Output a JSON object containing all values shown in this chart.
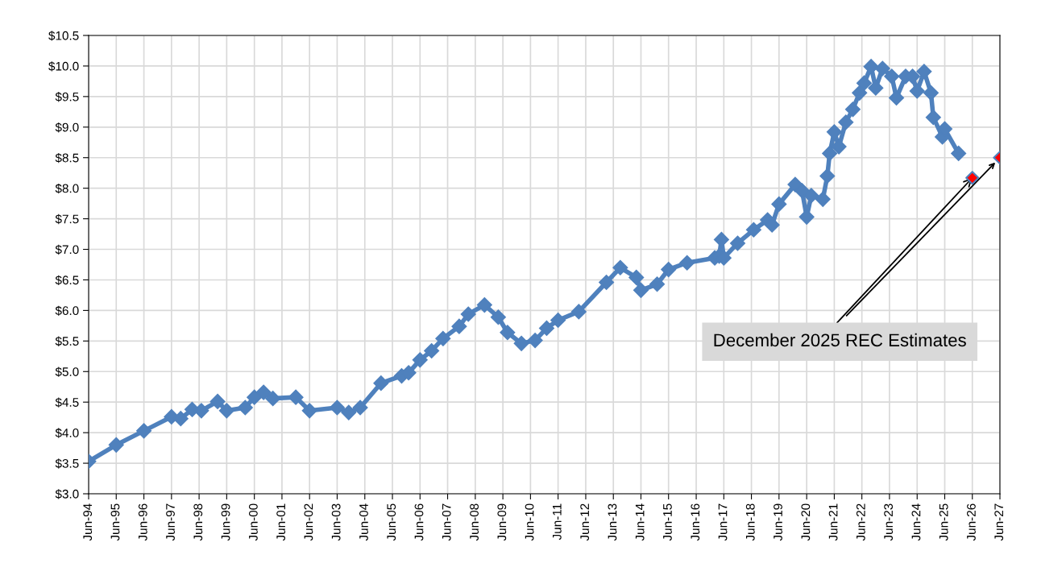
{
  "chart_data": {
    "type": "line",
    "marker": "diamond",
    "line_style": "solid",
    "grid": true,
    "xlim": [
      "1994-06",
      "2027-06"
    ],
    "ylim": [
      3.0,
      10.5
    ],
    "yticks": [
      {
        "value": 3.0,
        "label": "$3.0"
      },
      {
        "value": 3.5,
        "label": "$3.5"
      },
      {
        "value": 4.0,
        "label": "$4.0"
      },
      {
        "value": 4.5,
        "label": "$4.5"
      },
      {
        "value": 5.0,
        "label": "$5.0"
      },
      {
        "value": 5.5,
        "label": "$5.5"
      },
      {
        "value": 6.0,
        "label": "$6.0"
      },
      {
        "value": 6.5,
        "label": "$6.5"
      },
      {
        "value": 7.0,
        "label": "$7.0"
      },
      {
        "value": 7.5,
        "label": "$7.5"
      },
      {
        "value": 8.0,
        "label": "$8.0"
      },
      {
        "value": 8.5,
        "label": "$8.5"
      },
      {
        "value": 9.0,
        "label": "$9.0"
      },
      {
        "value": 9.5,
        "label": "$9.5"
      },
      {
        "value": 10.0,
        "label": "$10.0"
      },
      {
        "value": 10.5,
        "label": "$10.5"
      }
    ],
    "xticks": [
      {
        "value": "1994-06",
        "label": "Jun-94"
      },
      {
        "value": "1995-06",
        "label": "Jun-95"
      },
      {
        "value": "1996-06",
        "label": "Jun-96"
      },
      {
        "value": "1997-06",
        "label": "Jun-97"
      },
      {
        "value": "1998-06",
        "label": "Jun-98"
      },
      {
        "value": "1999-06",
        "label": "Jun-99"
      },
      {
        "value": "2000-06",
        "label": "Jun-00"
      },
      {
        "value": "2001-06",
        "label": "Jun-01"
      },
      {
        "value": "2002-06",
        "label": "Jun-02"
      },
      {
        "value": "2003-06",
        "label": "Jun-03"
      },
      {
        "value": "2004-06",
        "label": "Jun-04"
      },
      {
        "value": "2005-06",
        "label": "Jun-05"
      },
      {
        "value": "2006-06",
        "label": "Jun-06"
      },
      {
        "value": "2007-06",
        "label": "Jun-07"
      },
      {
        "value": "2008-06",
        "label": "Jun-08"
      },
      {
        "value": "2009-06",
        "label": "Jun-09"
      },
      {
        "value": "2010-06",
        "label": "Jun-10"
      },
      {
        "value": "2011-06",
        "label": "Jun-11"
      },
      {
        "value": "2012-06",
        "label": "Jun-12"
      },
      {
        "value": "2013-06",
        "label": "Jun-13"
      },
      {
        "value": "2014-06",
        "label": "Jun-14"
      },
      {
        "value": "2015-06",
        "label": "Jun-15"
      },
      {
        "value": "2016-06",
        "label": "Jun-16"
      },
      {
        "value": "2017-06",
        "label": "Jun-17"
      },
      {
        "value": "2018-06",
        "label": "Jun-18"
      },
      {
        "value": "2019-06",
        "label": "Jun-19"
      },
      {
        "value": "2020-06",
        "label": "Jun-20"
      },
      {
        "value": "2021-06",
        "label": "Jun-21"
      },
      {
        "value": "2022-06",
        "label": "Jun-22"
      },
      {
        "value": "2023-06",
        "label": "Jun-23"
      },
      {
        "value": "2024-06",
        "label": "Jun-24"
      },
      {
        "value": "2025-06",
        "label": "Jun-25"
      },
      {
        "value": "2026-06",
        "label": "Jun-26"
      },
      {
        "value": "2027-06",
        "label": "Jun-27"
      }
    ],
    "annotations": [
      {
        "text": "December 2025 REC Estimates",
        "x": "2026-06",
        "y": 8.17
      }
    ],
    "series": [
      {
        "color": "#4f81bd",
        "x": [
          "1994-06",
          "1995-06",
          "1996-06",
          "1997-06",
          "1997-10",
          "1998-03",
          "1998-07",
          "1999-02",
          "1999-06",
          "2000-02",
          "2000-06",
          "2000-10",
          "2001-02",
          "2001-12",
          "2002-06",
          "2003-06",
          "2003-11",
          "2004-04",
          "2005-01",
          "2005-10",
          "2006-01",
          "2006-06",
          "2006-11",
          "2007-04",
          "2007-11",
          "2008-03",
          "2008-10",
          "2009-04",
          "2009-08",
          "2010-02",
          "2010-08",
          "2011-01",
          "2011-06",
          "2012-03",
          "2013-03",
          "2013-09",
          "2014-04",
          "2014-06",
          "2015-01",
          "2015-06",
          "2016-02",
          "2017-02",
          "2017-04",
          "2017-05",
          "2017-06",
          "2017-12",
          "2018-07",
          "2019-01",
          "2019-03",
          "2019-06",
          "2020-01",
          "2020-04",
          "2020-06",
          "2020-08",
          "2021-01",
          "2021-03",
          "2021-04",
          "2021-06",
          "2021-08",
          "2021-11",
          "2022-02",
          "2022-05",
          "2022-07",
          "2022-10",
          "2022-12",
          "2023-03",
          "2023-07",
          "2023-09",
          "2024-01",
          "2024-04",
          "2024-06",
          "2024-09",
          "2024-12",
          "2025-01",
          "2025-05",
          "2025-06",
          "2025-12"
        ],
        "values": [
          3.53,
          3.8,
          4.03,
          4.26,
          4.23,
          4.38,
          4.36,
          4.51,
          4.36,
          4.41,
          4.58,
          4.66,
          4.56,
          4.58,
          4.36,
          4.41,
          4.33,
          4.41,
          4.81,
          4.93,
          4.98,
          5.19,
          5.34,
          5.54,
          5.74,
          5.94,
          6.09,
          5.89,
          5.64,
          5.46,
          5.51,
          5.71,
          5.84,
          5.98,
          6.46,
          6.7,
          6.54,
          6.33,
          6.43,
          6.67,
          6.78,
          6.86,
          6.89,
          7.16,
          6.86,
          7.1,
          7.32,
          7.48,
          7.4,
          7.74,
          8.06,
          7.96,
          7.53,
          7.88,
          7.82,
          8.2,
          8.57,
          8.92,
          8.68,
          9.08,
          9.29,
          9.56,
          9.72,
          9.99,
          9.64,
          9.96,
          9.83,
          9.48,
          9.83,
          9.83,
          9.59,
          9.91,
          9.56,
          9.16,
          8.84,
          8.97,
          8.57
        ]
      },
      {
        "type": "scatter",
        "color": "#ff0000",
        "x": [
          "2026-06",
          "2027-06"
        ],
        "values": [
          8.17,
          8.5
        ]
      }
    ]
  }
}
